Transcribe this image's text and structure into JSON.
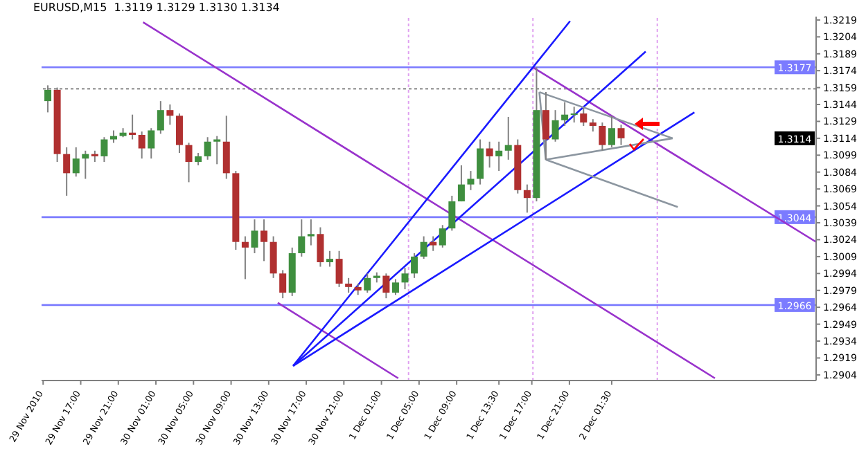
{
  "chart_data": {
    "type": "candlestick",
    "title": "EURUSD,M15  1.3119 1.3129 1.3130 1.3134",
    "x": [
      "2010-11-29T13:30",
      "2010-11-29T14:30",
      "2010-11-29T15:30",
      "2010-11-29T16:30",
      "2010-11-29T17:30",
      "2010-11-29T18:30",
      "2010-11-29T19:30",
      "2010-11-29T20:30",
      "2010-11-29T21:30",
      "2010-11-29T22:30",
      "2010-11-29T23:30",
      "2010-11-30T00:30",
      "2010-11-30T01:30",
      "2010-11-30T02:30",
      "2010-11-30T03:30",
      "2010-11-30T04:30",
      "2010-11-30T05:30",
      "2010-11-30T06:30",
      "2010-11-30T07:30",
      "2010-11-30T08:30",
      "2010-11-30T09:30",
      "2010-11-30T10:30",
      "2010-11-30T11:30",
      "2010-11-30T12:30",
      "2010-11-30T13:30",
      "2010-11-30T14:30",
      "2010-11-30T15:30",
      "2010-11-30T16:30",
      "2010-11-30T17:30",
      "2010-11-30T18:30",
      "2010-11-30T19:30",
      "2010-11-30T20:30",
      "2010-11-30T21:30",
      "2010-11-30T22:30",
      "2010-11-30T23:30",
      "2010-12-01T00:30",
      "2010-12-01T01:30",
      "2010-12-01T02:30",
      "2010-12-01T03:30",
      "2010-12-01T04:30",
      "2010-12-01T05:30",
      "2010-12-01T06:30",
      "2010-12-01T07:30",
      "2010-12-01T08:30",
      "2010-12-01T09:30",
      "2010-12-01T10:30",
      "2010-12-01T11:30",
      "2010-12-01T12:30",
      "2010-12-01T13:30",
      "2010-12-01T14:30",
      "2010-12-01T15:30",
      "2010-12-01T16:30",
      "2010-12-01T17:30",
      "2010-12-01T18:30",
      "2010-12-01T19:30",
      "2010-12-01T20:30",
      "2010-12-01T21:30",
      "2010-12-01T22:30",
      "2010-12-01T23:30",
      "2010-12-02T00:30",
      "2010-12-02T01:30",
      "2010-12-02T02:30"
    ],
    "ohlc": [
      [
        1.3147,
        1.3161,
        1.3137,
        1.3157
      ],
      [
        1.3157,
        1.3159,
        1.3093,
        1.31
      ],
      [
        1.31,
        1.3106,
        1.3063,
        1.3083
      ],
      [
        1.3083,
        1.3106,
        1.308,
        1.3096
      ],
      [
        1.3096,
        1.3103,
        1.3078,
        1.31
      ],
      [
        1.31,
        1.3103,
        1.3093,
        1.3098
      ],
      [
        1.3098,
        1.3115,
        1.3093,
        1.3113
      ],
      [
        1.3113,
        1.3121,
        1.311,
        1.3116
      ],
      [
        1.3116,
        1.3123,
        1.3115,
        1.3119
      ],
      [
        1.3119,
        1.3135,
        1.3113,
        1.3117
      ],
      [
        1.3117,
        1.312,
        1.3096,
        1.3105
      ],
      [
        1.3105,
        1.3123,
        1.3096,
        1.3121
      ],
      [
        1.3121,
        1.3147,
        1.3118,
        1.3139
      ],
      [
        1.3139,
        1.3144,
        1.3126,
        1.3134
      ],
      [
        1.3134,
        1.3136,
        1.3101,
        1.3108
      ],
      [
        1.3108,
        1.311,
        1.3075,
        1.3093
      ],
      [
        1.3093,
        1.3101,
        1.309,
        1.3098
      ],
      [
        1.3098,
        1.3115,
        1.3095,
        1.3111
      ],
      [
        1.3111,
        1.3116,
        1.3091,
        1.3113
      ],
      [
        1.3111,
        1.3134,
        1.3078,
        1.3083
      ],
      [
        1.3083,
        1.3085,
        1.3015,
        1.3022
      ],
      [
        1.3022,
        1.3027,
        1.2989,
        1.3017
      ],
      [
        1.3017,
        1.3042,
        1.3012,
        1.3032
      ],
      [
        1.3032,
        1.3042,
        1.3005,
        1.3022
      ],
      [
        1.3022,
        1.3027,
        1.299,
        1.2994
      ],
      [
        1.2994,
        1.2997,
        1.2972,
        1.2977
      ],
      [
        1.2977,
        1.3017,
        1.2974,
        1.3012
      ],
      [
        1.3012,
        1.3042,
        1.3009,
        1.3027
      ],
      [
        1.3027,
        1.3042,
        1.3019,
        1.3029
      ],
      [
        1.3029,
        1.3035,
        1.3,
        1.3004
      ],
      [
        1.3004,
        1.3014,
        1.3,
        1.3007
      ],
      [
        1.3007,
        1.3014,
        1.2982,
        1.2985
      ],
      [
        1.2985,
        1.299,
        1.2977,
        1.2982
      ],
      [
        1.2982,
        1.2985,
        1.2975,
        1.2979
      ],
      [
        1.2979,
        1.2994,
        1.2977,
        1.299
      ],
      [
        1.299,
        1.2995,
        1.2986,
        1.2992
      ],
      [
        1.2992,
        1.2994,
        1.2972,
        1.2977
      ],
      [
        1.2977,
        1.2989,
        1.2975,
        1.2986
      ],
      [
        1.2986,
        1.2999,
        1.298,
        1.2994
      ],
      [
        1.2994,
        1.3012,
        1.299,
        1.3009
      ],
      [
        1.3009,
        1.3027,
        1.3007,
        1.3022
      ],
      [
        1.3022,
        1.3027,
        1.3014,
        1.3019
      ],
      [
        1.3019,
        1.3037,
        1.3017,
        1.3034
      ],
      [
        1.3034,
        1.3063,
        1.3032,
        1.3058
      ],
      [
        1.3058,
        1.309,
        1.3058,
        1.3073
      ],
      [
        1.3073,
        1.3085,
        1.3068,
        1.3078
      ],
      [
        1.3078,
        1.3113,
        1.3073,
        1.3105
      ],
      [
        1.3105,
        1.3111,
        1.3088,
        1.3098
      ],
      [
        1.3098,
        1.3111,
        1.3085,
        1.3103
      ],
      [
        1.3103,
        1.3133,
        1.3095,
        1.3108
      ],
      [
        1.3108,
        1.3113,
        1.3065,
        1.3068
      ],
      [
        1.3068,
        1.3073,
        1.3048,
        1.3061
      ],
      [
        1.3061,
        1.3177,
        1.3058,
        1.3139
      ],
      [
        1.3139,
        1.3155,
        1.3095,
        1.3113
      ],
      [
        1.3113,
        1.3139,
        1.3111,
        1.313
      ],
      [
        1.313,
        1.3146,
        1.3125,
        1.3135
      ],
      [
        1.3135,
        1.3142,
        1.3128,
        1.3136
      ],
      [
        1.3136,
        1.3141,
        1.3125,
        1.3128
      ],
      [
        1.3128,
        1.3131,
        1.312,
        1.3125
      ],
      [
        1.3125,
        1.3128,
        1.3103,
        1.3108
      ],
      [
        1.3108,
        1.3134,
        1.3106,
        1.3123
      ],
      [
        1.3123,
        1.3126,
        1.3108,
        1.3114
      ]
    ],
    "colors": [
      "#3f8f3f",
      "#b03030",
      "#b03030",
      "#3f8f3f",
      "#3f8f3f",
      "#b03030",
      "#3f8f3f",
      "#3f8f3f",
      "#3f8f3f",
      "#b03030",
      "#b03030",
      "#3f8f3f",
      "#3f8f3f",
      "#b03030",
      "#b03030",
      "#b03030",
      "#3f8f3f",
      "#3f8f3f",
      "#3f8f3f",
      "#b03030",
      "#b03030",
      "#b03030",
      "#3f8f3f",
      "#b03030",
      "#b03030",
      "#b03030",
      "#3f8f3f",
      "#3f8f3f",
      "#3f8f3f",
      "#b03030",
      "#3f8f3f",
      "#b03030",
      "#b03030",
      "#b03030",
      "#3f8f3f",
      "#3f8f3f",
      "#b03030",
      "#3f8f3f",
      "#3f8f3f",
      "#3f8f3f",
      "#3f8f3f",
      "#b03030",
      "#3f8f3f",
      "#3f8f3f",
      "#3f8f3f",
      "#3f8f3f",
      "#3f8f3f",
      "#b03030",
      "#3f8f3f",
      "#3f8f3f",
      "#b03030",
      "#b03030",
      "#3f8f3f",
      "#b03030",
      "#3f8f3f",
      "#3f8f3f",
      "#3f8f3f",
      "#b03030",
      "#b03030",
      "#b03030",
      "#3f8f3f",
      "#b03030"
    ],
    "series": [
      {
        "type": "line",
        "color": "#9933cc",
        "x": [
          "2010-11-29T23:38",
          "2010-12-02T12:29"
        ],
        "values": [
          1.3217,
          1.2901
        ]
      },
      {
        "type": "line",
        "color": "#9933cc",
        "x": [
          "2010-12-01T17:07",
          "2010-12-02T23:15"
        ],
        "values": [
          1.3177,
          1.3022
        ]
      },
      {
        "type": "line",
        "color": "#9933cc",
        "x": [
          "2010-11-30T13:58",
          "2010-12-01T02:47"
        ],
        "values": [
          1.2968,
          1.2901
        ]
      },
      {
        "type": "line",
        "color": "#1a1aff",
        "x": [
          "2010-11-30T15:36",
          "2010-12-01T21:04"
        ],
        "values": [
          1.2912,
          1.3218
        ]
      },
      {
        "type": "line",
        "color": "#1a1aff",
        "x": [
          "2010-11-30T15:36",
          "2010-12-02T05:07"
        ],
        "values": [
          1.2912,
          1.3191
        ]
      },
      {
        "type": "line",
        "color": "#1a1aff",
        "x": [
          "2010-11-30T15:36",
          "2010-12-02T10:18"
        ],
        "values": [
          1.2912,
          1.3137
        ]
      },
      {
        "type": "line",
        "color": "#8c96a0",
        "x": [
          "2010-12-01T17:48",
          "2010-12-02T07:59"
        ],
        "values": [
          1.3155,
          1.3114
        ]
      },
      {
        "type": "line",
        "color": "#8c96a0",
        "x": [
          "2010-12-01T18:29",
          "2010-12-02T07:59"
        ],
        "values": [
          1.3095,
          1.3114
        ]
      },
      {
        "type": "line",
        "color": "#8c96a0",
        "x": [
          "2010-12-01T17:48",
          "2010-12-01T18:29"
        ],
        "values": [
          1.3155,
          1.3095
        ]
      },
      {
        "type": "line",
        "color": "#8c96a0",
        "x": [
          "2010-12-01T18:29",
          "2010-12-02T08:32"
        ],
        "values": [
          1.3095,
          1.3053
        ]
      }
    ],
    "xlim": [
      "2010-11-29T12:50",
      "2010-12-02T23:15"
    ],
    "xticks": [
      {
        "value": "2010-11-29T13:00",
        "label": "29 Nov 2010"
      },
      {
        "value": "2010-11-29T17:00",
        "label": "29 Nov 17:00"
      },
      {
        "value": "2010-11-29T21:00",
        "label": "29 Nov 21:00"
      },
      {
        "value": "2010-11-30T01:00",
        "label": "30 Nov 01:00"
      },
      {
        "value": "2010-11-30T05:00",
        "label": "30 Nov 05:00"
      },
      {
        "value": "2010-11-30T09:00",
        "label": "30 Nov 09:00"
      },
      {
        "value": "2010-11-30T13:00",
        "label": "30 Nov 13:00"
      },
      {
        "value": "2010-11-30T17:00",
        "label": "30 Nov 17:00"
      },
      {
        "value": "2010-11-30T21:00",
        "label": "30 Nov 21:00"
      },
      {
        "value": "2010-12-01T01:00",
        "label": "1 Dec 01:00"
      },
      {
        "value": "2010-12-01T05:00",
        "label": "1 Dec 05:00"
      },
      {
        "value": "2010-12-01T09:00",
        "label": "1 Dec 09:00"
      },
      {
        "value": "2010-12-01T13:30",
        "label": "1 Dec 13:30"
      },
      {
        "value": "2010-12-01T17:00",
        "label": "1 Dec 17:00"
      },
      {
        "value": "2010-12-01T21:00",
        "label": "1 Dec 21:00"
      },
      {
        "value": "2010-12-02T01:30",
        "label": "2 Dec 01:30"
      }
    ],
    "ylim": [
      1.2899,
      1.3222
    ],
    "yticks": [
      1.2904,
      1.2919,
      1.2934,
      1.2949,
      1.2964,
      1.2979,
      1.2994,
      1.3009,
      1.3024,
      1.3039,
      1.3054,
      1.3069,
      1.3084,
      1.3099,
      1.3114,
      1.3129,
      1.3144,
      1.3159,
      1.3174,
      1.3189,
      1.3204,
      1.3219
    ],
    "ref_lines": [
      {
        "axis": "y",
        "value": 1.3177,
        "label": "1.3177",
        "color": "#7b7bff"
      },
      {
        "axis": "y",
        "value": 1.3044,
        "label": "1.3044",
        "color": "#7b7bff"
      },
      {
        "axis": "y",
        "value": 1.2966,
        "label": "1.2966",
        "color": "#7b7bff"
      },
      {
        "axis": "y",
        "value": 1.3158,
        "color": "#a0a0a0",
        "line_style": "dotted"
      },
      {
        "axis": "x",
        "value": "2010-12-01T03:53",
        "color": "#e0a0f0",
        "line_style": "dotted"
      },
      {
        "axis": "x",
        "value": "2010-12-01T17:07",
        "color": "#e0a0f0",
        "line_style": "dotted"
      },
      {
        "axis": "x",
        "value": "2010-12-02T06:21",
        "color": "#e0a0f0",
        "line_style": "dotted"
      }
    ],
    "annotations": [
      {
        "text": "1.3114",
        "y": 1.3114
      }
    ]
  }
}
